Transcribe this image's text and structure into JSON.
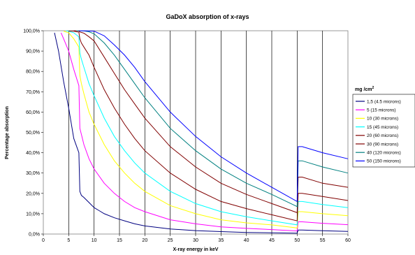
{
  "chart_data": {
    "type": "line",
    "title": "GaDoX absorption of x-rays",
    "xlabel": "X-ray energy in keV",
    "ylabel": "Percentage absorption",
    "xlim": [
      0,
      60
    ],
    "ylim": [
      0,
      100
    ],
    "x_ticks": [
      "0",
      "5",
      "10",
      "15",
      "20",
      "25",
      "30",
      "35",
      "40",
      "45",
      "50",
      "55",
      "60"
    ],
    "y_ticks": [
      "0,0%",
      "10,0%",
      "20,0%",
      "30,0%",
      "40,0%",
      "50,0%",
      "60,0%",
      "70,0%",
      "80,0%",
      "90,0%",
      "100,0%"
    ],
    "grid": "vertical",
    "legend": {
      "position": "right",
      "title": "mg /cm",
      "title_superscript": "2"
    },
    "series": [
      {
        "name": "1,5 (4.5 microns)",
        "color": "#000080",
        "points": [
          [
            2.2,
            99
          ],
          [
            3,
            90
          ],
          [
            4,
            75
          ],
          [
            5,
            62
          ],
          [
            6,
            47
          ],
          [
            7.0,
            40
          ],
          [
            7.2,
            21
          ],
          [
            7.5,
            19
          ],
          [
            8,
            18
          ],
          [
            9,
            15.5
          ],
          [
            10,
            13
          ],
          [
            11,
            11.5
          ],
          [
            12,
            10
          ],
          [
            14,
            8
          ],
          [
            16,
            6.5
          ],
          [
            18,
            5
          ],
          [
            20,
            4
          ],
          [
            25,
            2.5
          ],
          [
            30,
            1.7
          ],
          [
            35,
            1.2
          ],
          [
            40,
            0.8
          ],
          [
            45,
            0.6
          ],
          [
            50,
            0.4
          ],
          [
            50.2,
            2
          ],
          [
            51,
            2
          ],
          [
            55,
            1.6
          ],
          [
            60,
            1.3
          ]
        ]
      },
      {
        "name": "5 (15 microns)",
        "color": "#FF00FF",
        "points": [
          [
            3.5,
            99
          ],
          [
            4,
            96
          ],
          [
            5,
            90
          ],
          [
            6,
            81
          ],
          [
            7.0,
            73
          ],
          [
            7.2,
            52
          ],
          [
            7.5,
            49
          ],
          [
            8,
            44
          ],
          [
            9,
            37
          ],
          [
            10,
            32
          ],
          [
            12,
            25
          ],
          [
            14,
            20
          ],
          [
            16,
            16
          ],
          [
            18,
            13
          ],
          [
            20,
            11
          ],
          [
            25,
            7
          ],
          [
            30,
            5
          ],
          [
            35,
            3.5
          ],
          [
            40,
            2.8
          ],
          [
            45,
            2.2
          ],
          [
            50,
            1.5
          ],
          [
            50.2,
            6
          ],
          [
            51,
            6
          ],
          [
            55,
            5.3
          ],
          [
            60,
            4.6
          ]
        ]
      },
      {
        "name": "10 (30 microns)",
        "color": "#FFFF00",
        "points": [
          [
            4,
            99.8
          ],
          [
            5,
            99
          ],
          [
            6,
            96
          ],
          [
            7.0,
            92
          ],
          [
            7.2,
            78
          ],
          [
            7.5,
            74
          ],
          [
            8,
            69
          ],
          [
            9,
            60
          ],
          [
            10,
            54
          ],
          [
            12,
            44
          ],
          [
            14,
            36
          ],
          [
            16,
            30
          ],
          [
            18,
            25
          ],
          [
            20,
            21
          ],
          [
            25,
            14
          ],
          [
            30,
            10
          ],
          [
            35,
            7
          ],
          [
            40,
            5.5
          ],
          [
            45,
            4.5
          ],
          [
            50,
            3
          ],
          [
            50.2,
            11
          ],
          [
            51,
            11
          ],
          [
            55,
            10
          ],
          [
            60,
            9
          ]
        ]
      },
      {
        "name": "15 (45 microns)",
        "color": "#00FFFF",
        "points": [
          [
            4.5,
            99.9
          ],
          [
            5,
            99.8
          ],
          [
            6,
            99
          ],
          [
            7.0,
            97
          ],
          [
            7.2,
            89
          ],
          [
            7.5,
            86
          ],
          [
            8,
            82
          ],
          [
            9,
            74
          ],
          [
            10,
            68
          ],
          [
            12,
            57
          ],
          [
            14,
            48
          ],
          [
            16,
            41
          ],
          [
            18,
            35
          ],
          [
            20,
            30
          ],
          [
            25,
            21
          ],
          [
            30,
            15
          ],
          [
            35,
            11
          ],
          [
            40,
            8.5
          ],
          [
            45,
            6.5
          ],
          [
            50,
            4.5
          ],
          [
            50.2,
            16
          ],
          [
            51,
            16
          ],
          [
            55,
            14.5
          ],
          [
            60,
            13
          ]
        ]
      },
      {
        "name": "20 (60 microns)",
        "color": "#800000",
        "points": [
          [
            5,
            99.9
          ],
          [
            6,
            99.8
          ],
          [
            7.0,
            99.3
          ],
          [
            7.2,
            96
          ],
          [
            7.5,
            94
          ],
          [
            8,
            92
          ],
          [
            9,
            88
          ],
          [
            10,
            82
          ],
          [
            12,
            71
          ],
          [
            14,
            62
          ],
          [
            16,
            54
          ],
          [
            18,
            47
          ],
          [
            20,
            41
          ],
          [
            25,
            30
          ],
          [
            30,
            22
          ],
          [
            35,
            16
          ],
          [
            40,
            12.5
          ],
          [
            45,
            9.5
          ],
          [
            50,
            6.5
          ],
          [
            50.2,
            20
          ],
          [
            51,
            20
          ],
          [
            55,
            18.5
          ],
          [
            60,
            16.5
          ]
        ]
      },
      {
        "name": "30 (90 microns)",
        "color": "#800000",
        "points": [
          [
            6,
            100
          ],
          [
            7.0,
            99.9
          ],
          [
            7.2,
            99.4
          ],
          [
            8,
            98.8
          ],
          [
            9,
            97
          ],
          [
            10,
            95
          ],
          [
            12,
            87
          ],
          [
            14,
            79
          ],
          [
            16,
            71
          ],
          [
            18,
            64
          ],
          [
            20,
            57
          ],
          [
            25,
            43
          ],
          [
            30,
            33
          ],
          [
            35,
            25
          ],
          [
            40,
            19.5
          ],
          [
            45,
            15
          ],
          [
            50,
            10.5
          ],
          [
            50.2,
            28
          ],
          [
            51,
            28
          ],
          [
            55,
            25
          ],
          [
            60,
            23
          ]
        ]
      },
      {
        "name": "40 (120 microns)",
        "color": "#008080",
        "points": [
          [
            6.5,
            100
          ],
          [
            8,
            99.9
          ],
          [
            9,
            99.5
          ],
          [
            10,
            98.5
          ],
          [
            12,
            94
          ],
          [
            14,
            88
          ],
          [
            16,
            81
          ],
          [
            18,
            74
          ],
          [
            20,
            67
          ],
          [
            25,
            52
          ],
          [
            30,
            41
          ],
          [
            35,
            32
          ],
          [
            40,
            25
          ],
          [
            45,
            19.5
          ],
          [
            50,
            13.5
          ],
          [
            50.2,
            36
          ],
          [
            51,
            36
          ],
          [
            55,
            33
          ],
          [
            60,
            30
          ]
        ]
      },
      {
        "name": "50 (150 microns)",
        "color": "#0000FF",
        "points": [
          [
            7,
            100
          ],
          [
            10,
            99.8
          ],
          [
            12,
            97.5
          ],
          [
            14,
            93
          ],
          [
            16,
            88
          ],
          [
            18,
            82
          ],
          [
            20,
            75
          ],
          [
            25,
            60
          ],
          [
            30,
            48
          ],
          [
            35,
            38
          ],
          [
            40,
            30
          ],
          [
            45,
            23
          ],
          [
            50,
            16
          ],
          [
            50.2,
            43
          ],
          [
            51,
            43
          ],
          [
            55,
            40
          ],
          [
            60,
            37
          ]
        ]
      }
    ]
  }
}
